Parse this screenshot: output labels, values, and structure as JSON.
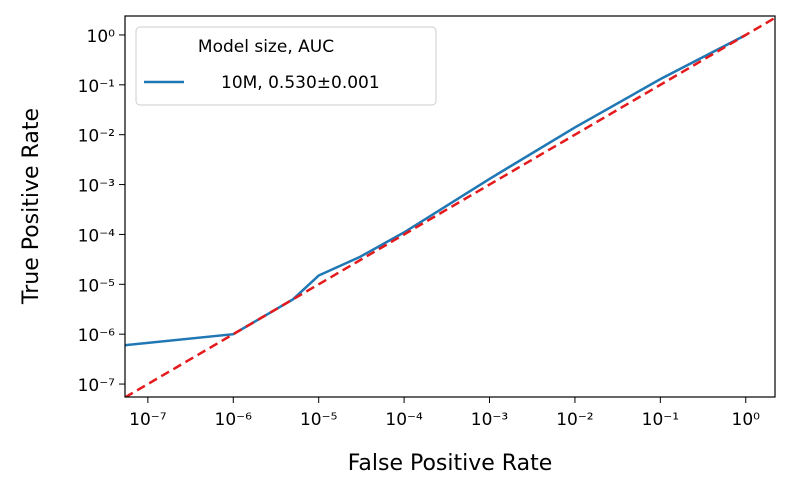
{
  "chart_data": {
    "type": "line",
    "log_scale": {
      "x": true,
      "y": true
    },
    "x_label": "False Positive Rate",
    "y_label": "True Positive Rate",
    "xlim": [
      5.4e-08,
      2.2
    ],
    "ylim": [
      5.5e-08,
      2.4
    ],
    "xticks": [
      {
        "value": 1e-07,
        "label": "10⁻⁷"
      },
      {
        "value": 1e-06,
        "label": "10⁻⁶"
      },
      {
        "value": 1e-05,
        "label": "10⁻⁵"
      },
      {
        "value": 0.0001,
        "label": "10⁻⁴"
      },
      {
        "value": 0.001,
        "label": "10⁻³"
      },
      {
        "value": 0.01,
        "label": "10⁻²"
      },
      {
        "value": 0.1,
        "label": "10⁻¹"
      },
      {
        "value": 1,
        "label": "10⁰"
      }
    ],
    "yticks": [
      {
        "value": 1e-07,
        "label": "10⁻⁷"
      },
      {
        "value": 1e-06,
        "label": "10⁻⁶"
      },
      {
        "value": 1e-05,
        "label": "10⁻⁵"
      },
      {
        "value": 0.0001,
        "label": "10⁻⁴"
      },
      {
        "value": 0.001,
        "label": "10⁻³"
      },
      {
        "value": 0.01,
        "label": "10⁻²"
      },
      {
        "value": 0.1,
        "label": "10⁻¹"
      },
      {
        "value": 1,
        "label": "10⁰"
      }
    ],
    "legend_title": "Model size, AUC",
    "legend_loc": "upper left",
    "diagonal": {
      "color": "#e41a1c",
      "style": "dashed"
    },
    "x": [
      5.4e-08,
      1e-06,
      2e-06,
      5e-06,
      1e-05,
      3e-05,
      0.0001,
      0.001,
      0.01,
      0.1,
      1
    ],
    "series": [
      {
        "name": "10M, 0.530±0.001",
        "color": "#1f77b4",
        "values": [
          6e-07,
          1e-06,
          2e-06,
          5e-06,
          1.5e-05,
          3.5e-05,
          0.00011,
          0.0013,
          0.014,
          0.13,
          1
        ]
      }
    ]
  }
}
